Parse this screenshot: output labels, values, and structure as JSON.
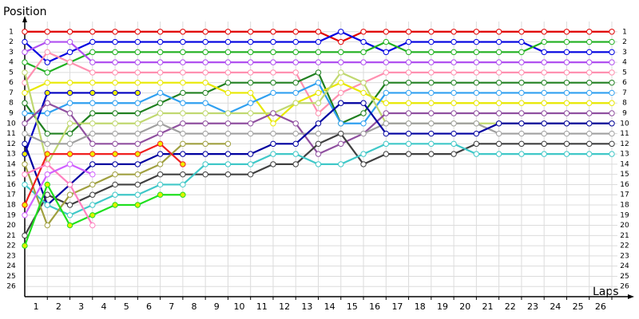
{
  "chart_data": {
    "type": "line",
    "x_title": "Laps",
    "y_title": "Position",
    "x": [
      0,
      1,
      2,
      3,
      4,
      5,
      6,
      7,
      8,
      9,
      10,
      11,
      12,
      13,
      14,
      15,
      16,
      17,
      18,
      19,
      20,
      21,
      22,
      23,
      24,
      25,
      26
    ],
    "xlim": [
      0,
      26
    ],
    "xticks": [
      1,
      2,
      3,
      4,
      5,
      6,
      7,
      8,
      9,
      10,
      11,
      12,
      13,
      14,
      15,
      16,
      17,
      18,
      19,
      20,
      21,
      22,
      23,
      24,
      25,
      26
    ],
    "ylim": [
      0,
      27
    ],
    "y_inverted": true,
    "yticks": [
      1,
      2,
      3,
      4,
      5,
      6,
      7,
      8,
      9,
      10,
      11,
      12,
      13,
      14,
      15,
      16,
      17,
      18,
      19,
      20,
      21,
      22,
      23,
      24,
      25,
      26
    ],
    "grid": true,
    "series": [
      {
        "color": "#e00000",
        "values": [
          1,
          1,
          1,
          1,
          1,
          1,
          1,
          1,
          1,
          1,
          1,
          1,
          1,
          1,
          2,
          1,
          1,
          1,
          1,
          1,
          1,
          1,
          1,
          1,
          1,
          1,
          1
        ]
      },
      {
        "color": "#0000e0",
        "values": [
          2,
          4,
          3,
          2,
          2,
          2,
          2,
          2,
          2,
          2,
          2,
          2,
          2,
          2,
          1,
          2,
          3,
          2,
          2,
          2,
          2,
          2,
          2,
          3,
          3,
          3,
          3
        ]
      },
      {
        "color": "#20b020",
        "values": [
          4,
          5,
          4,
          3,
          3,
          3,
          3,
          3,
          3,
          3,
          3,
          3,
          3,
          3,
          3,
          3,
          2,
          3,
          3,
          3,
          3,
          3,
          3,
          2,
          2,
          2,
          2
        ]
      },
      {
        "color": "#b050f0",
        "values": [
          3,
          2,
          2,
          4,
          4,
          4,
          4,
          4,
          4,
          4,
          4,
          4,
          4,
          4,
          4,
          4,
          4,
          4,
          4,
          4,
          4,
          4,
          4,
          4,
          4,
          4,
          4
        ]
      },
      {
        "color": "#ff90b0",
        "values": [
          6,
          3,
          4,
          5,
          5,
          5,
          5,
          5,
          5,
          5,
          5,
          5,
          5,
          9,
          7,
          6,
          5,
          5,
          5,
          5,
          5,
          5,
          5,
          5,
          5,
          5,
          5
        ]
      },
      {
        "color": "#208020",
        "values": [
          8,
          11,
          11,
          9,
          9,
          9,
          8,
          7,
          7,
          6,
          6,
          6,
          6,
          5,
          10,
          9,
          6,
          6,
          6,
          6,
          6,
          6,
          6,
          6,
          6,
          6,
          6
        ]
      },
      {
        "color": "#e8e800",
        "values": [
          7,
          6,
          6,
          6,
          6,
          6,
          6,
          6,
          6,
          7,
          7,
          10,
          8,
          7,
          6,
          7,
          8,
          8,
          8,
          8,
          8,
          8,
          8,
          8,
          8,
          8,
          8
        ]
      },
      {
        "color": "#30a0f0",
        "values": [
          9,
          9,
          8,
          8,
          8,
          8,
          7,
          8,
          8,
          9,
          8,
          7,
          7,
          6,
          10,
          10,
          7,
          7,
          7,
          7,
          7,
          7,
          7,
          7,
          7,
          7,
          7
        ]
      },
      {
        "color": "#0000c0",
        "marker_fill": "#f0f000",
        "values": [
          13,
          7,
          7,
          7,
          7,
          7,
          null,
          null,
          null,
          null,
          null,
          null,
          null,
          null,
          null,
          null,
          null,
          null,
          null,
          null,
          null,
          null,
          null,
          null,
          null,
          null,
          null
        ]
      },
      {
        "color": "#c0d870",
        "values": [
          5,
          14,
          10,
          10,
          10,
          10,
          9,
          9,
          9,
          9,
          9,
          9,
          8,
          8,
          5,
          6,
          10,
          10,
          10,
          10,
          10,
          10,
          10,
          10,
          10,
          10,
          10
        ]
      },
      {
        "color": "#9050a0",
        "values": [
          10,
          8,
          9,
          12,
          12,
          12,
          11,
          10,
          10,
          10,
          10,
          9,
          10,
          13,
          12,
          11,
          9,
          9,
          9,
          9,
          9,
          9,
          9,
          9,
          9,
          9,
          9
        ]
      },
      {
        "color": "#a0a0a0",
        "values": [
          11,
          12,
          12,
          11,
          11,
          11,
          10,
          11,
          11,
          11,
          11,
          11,
          11,
          11,
          11,
          11,
          10,
          10,
          10,
          10,
          10,
          11,
          11,
          11,
          11,
          11,
          11
        ]
      },
      {
        "color": "#0000a0",
        "values": [
          12,
          18,
          16,
          14,
          14,
          14,
          13,
          13,
          13,
          13,
          13,
          12,
          12,
          10,
          8,
          8,
          11,
          11,
          11,
          11,
          11,
          10,
          10,
          10,
          10,
          10,
          10
        ]
      },
      {
        "color": "#404040",
        "values": [
          21,
          17,
          18,
          17,
          16,
          16,
          15,
          15,
          15,
          15,
          15,
          14,
          14,
          12,
          11,
          14,
          13,
          13,
          13,
          13,
          12,
          12,
          12,
          12,
          12,
          12,
          12
        ]
      },
      {
        "color": "#40c8c8",
        "values": [
          16,
          18,
          19,
          18,
          17,
          17,
          16,
          16,
          14,
          14,
          14,
          13,
          13,
          14,
          14,
          13,
          12,
          12,
          12,
          12,
          13,
          13,
          13,
          13,
          13,
          13,
          13
        ]
      },
      {
        "color": "#a0a040",
        "values": [
          14,
          20,
          17,
          16,
          15,
          15,
          14,
          12,
          12,
          12,
          null,
          null,
          null,
          null,
          null,
          null,
          null,
          null,
          null,
          null,
          null,
          null,
          null,
          null,
          null,
          null,
          null
        ]
      },
      {
        "color": "#20e020",
        "marker_fill": "#e0f000",
        "values": [
          22,
          16,
          20,
          19,
          18,
          18,
          17,
          17,
          null,
          null,
          null,
          null,
          null,
          null,
          null,
          null,
          null,
          null,
          null,
          null,
          null,
          null,
          null,
          null,
          null,
          null,
          null
        ]
      },
      {
        "color": "#f02020",
        "marker_fill": "#f0f000",
        "values": [
          18,
          13,
          13,
          13,
          13,
          13,
          12,
          14,
          null,
          null,
          null,
          null,
          null,
          null,
          null,
          null,
          null,
          null,
          null,
          null,
          null,
          null,
          null,
          null,
          null,
          null,
          null
        ]
      },
      {
        "color": "#ff80c0",
        "values": [
          15,
          14,
          16,
          20,
          null,
          null,
          null,
          null,
          null,
          null,
          null,
          null,
          null,
          null,
          null,
          null,
          null,
          null,
          null,
          null,
          null,
          null,
          null,
          null,
          null,
          null,
          null
        ]
      },
      {
        "color": "#d060ff",
        "values": [
          19,
          15,
          14,
          15,
          null,
          null,
          null,
          null,
          null,
          null,
          null,
          null,
          null,
          null,
          null,
          null,
          null,
          null,
          null,
          null,
          null,
          null,
          null,
          null,
          null,
          null,
          null
        ]
      }
    ]
  }
}
